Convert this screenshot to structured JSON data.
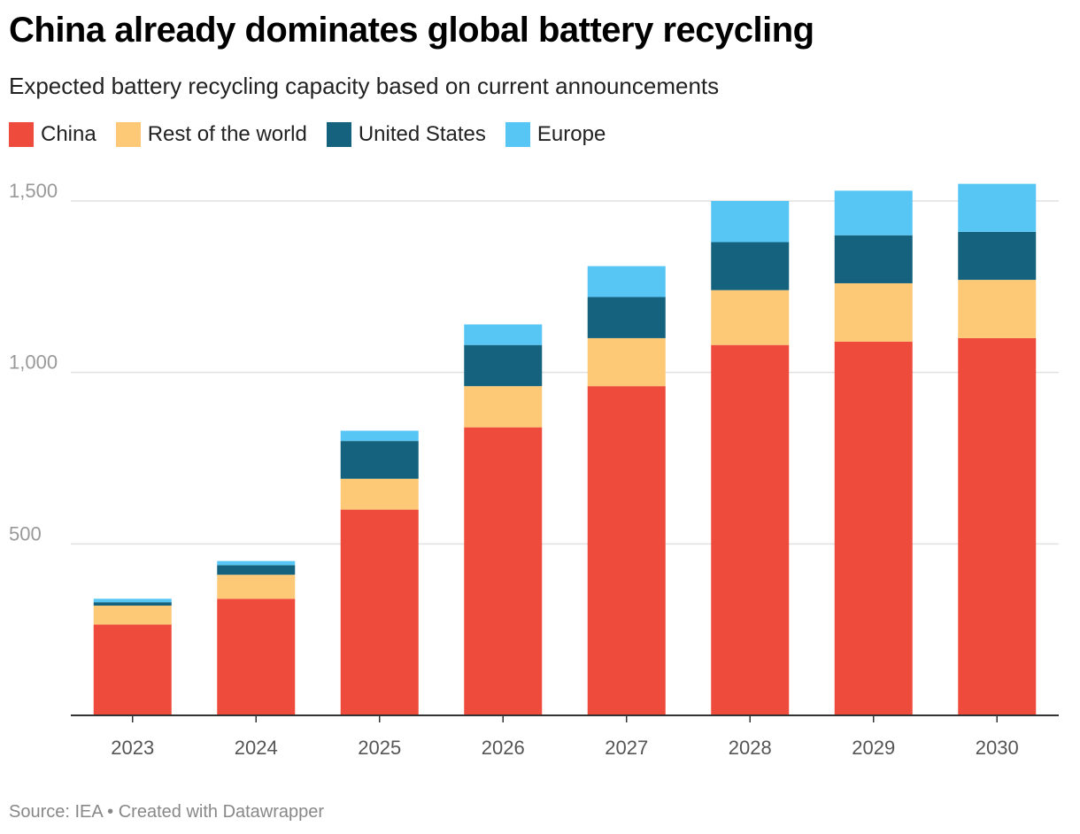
{
  "title": "China already dominates global battery recycling",
  "subtitle": "Expected battery recycling capacity based on current announcements",
  "source": "Source: IEA • Created with Datawrapper",
  "chart_data": {
    "type": "bar",
    "stacked": true,
    "categories": [
      "2023",
      "2024",
      "2025",
      "2026",
      "2027",
      "2028",
      "2029",
      "2030"
    ],
    "series": [
      {
        "name": "China",
        "color": "#ef4b3c",
        "values": [
          265,
          340,
          600,
          840,
          960,
          1080,
          1090,
          1100
        ]
      },
      {
        "name": "Rest of the world",
        "color": "#fdc977",
        "values": [
          55,
          70,
          90,
          120,
          140,
          160,
          170,
          170
        ]
      },
      {
        "name": "United States",
        "color": "#15627e",
        "values": [
          10,
          28,
          110,
          120,
          120,
          140,
          140,
          140
        ]
      },
      {
        "name": "Europe",
        "color": "#57c6f5",
        "values": [
          10,
          12,
          30,
          60,
          90,
          120,
          130,
          140
        ]
      }
    ],
    "yticks": [
      500,
      1000,
      1500
    ],
    "ytick_labels": [
      "500",
      "1,000",
      "1,500"
    ],
    "ylim": [
      0,
      1550
    ],
    "grid": true,
    "legend": "top-left"
  }
}
